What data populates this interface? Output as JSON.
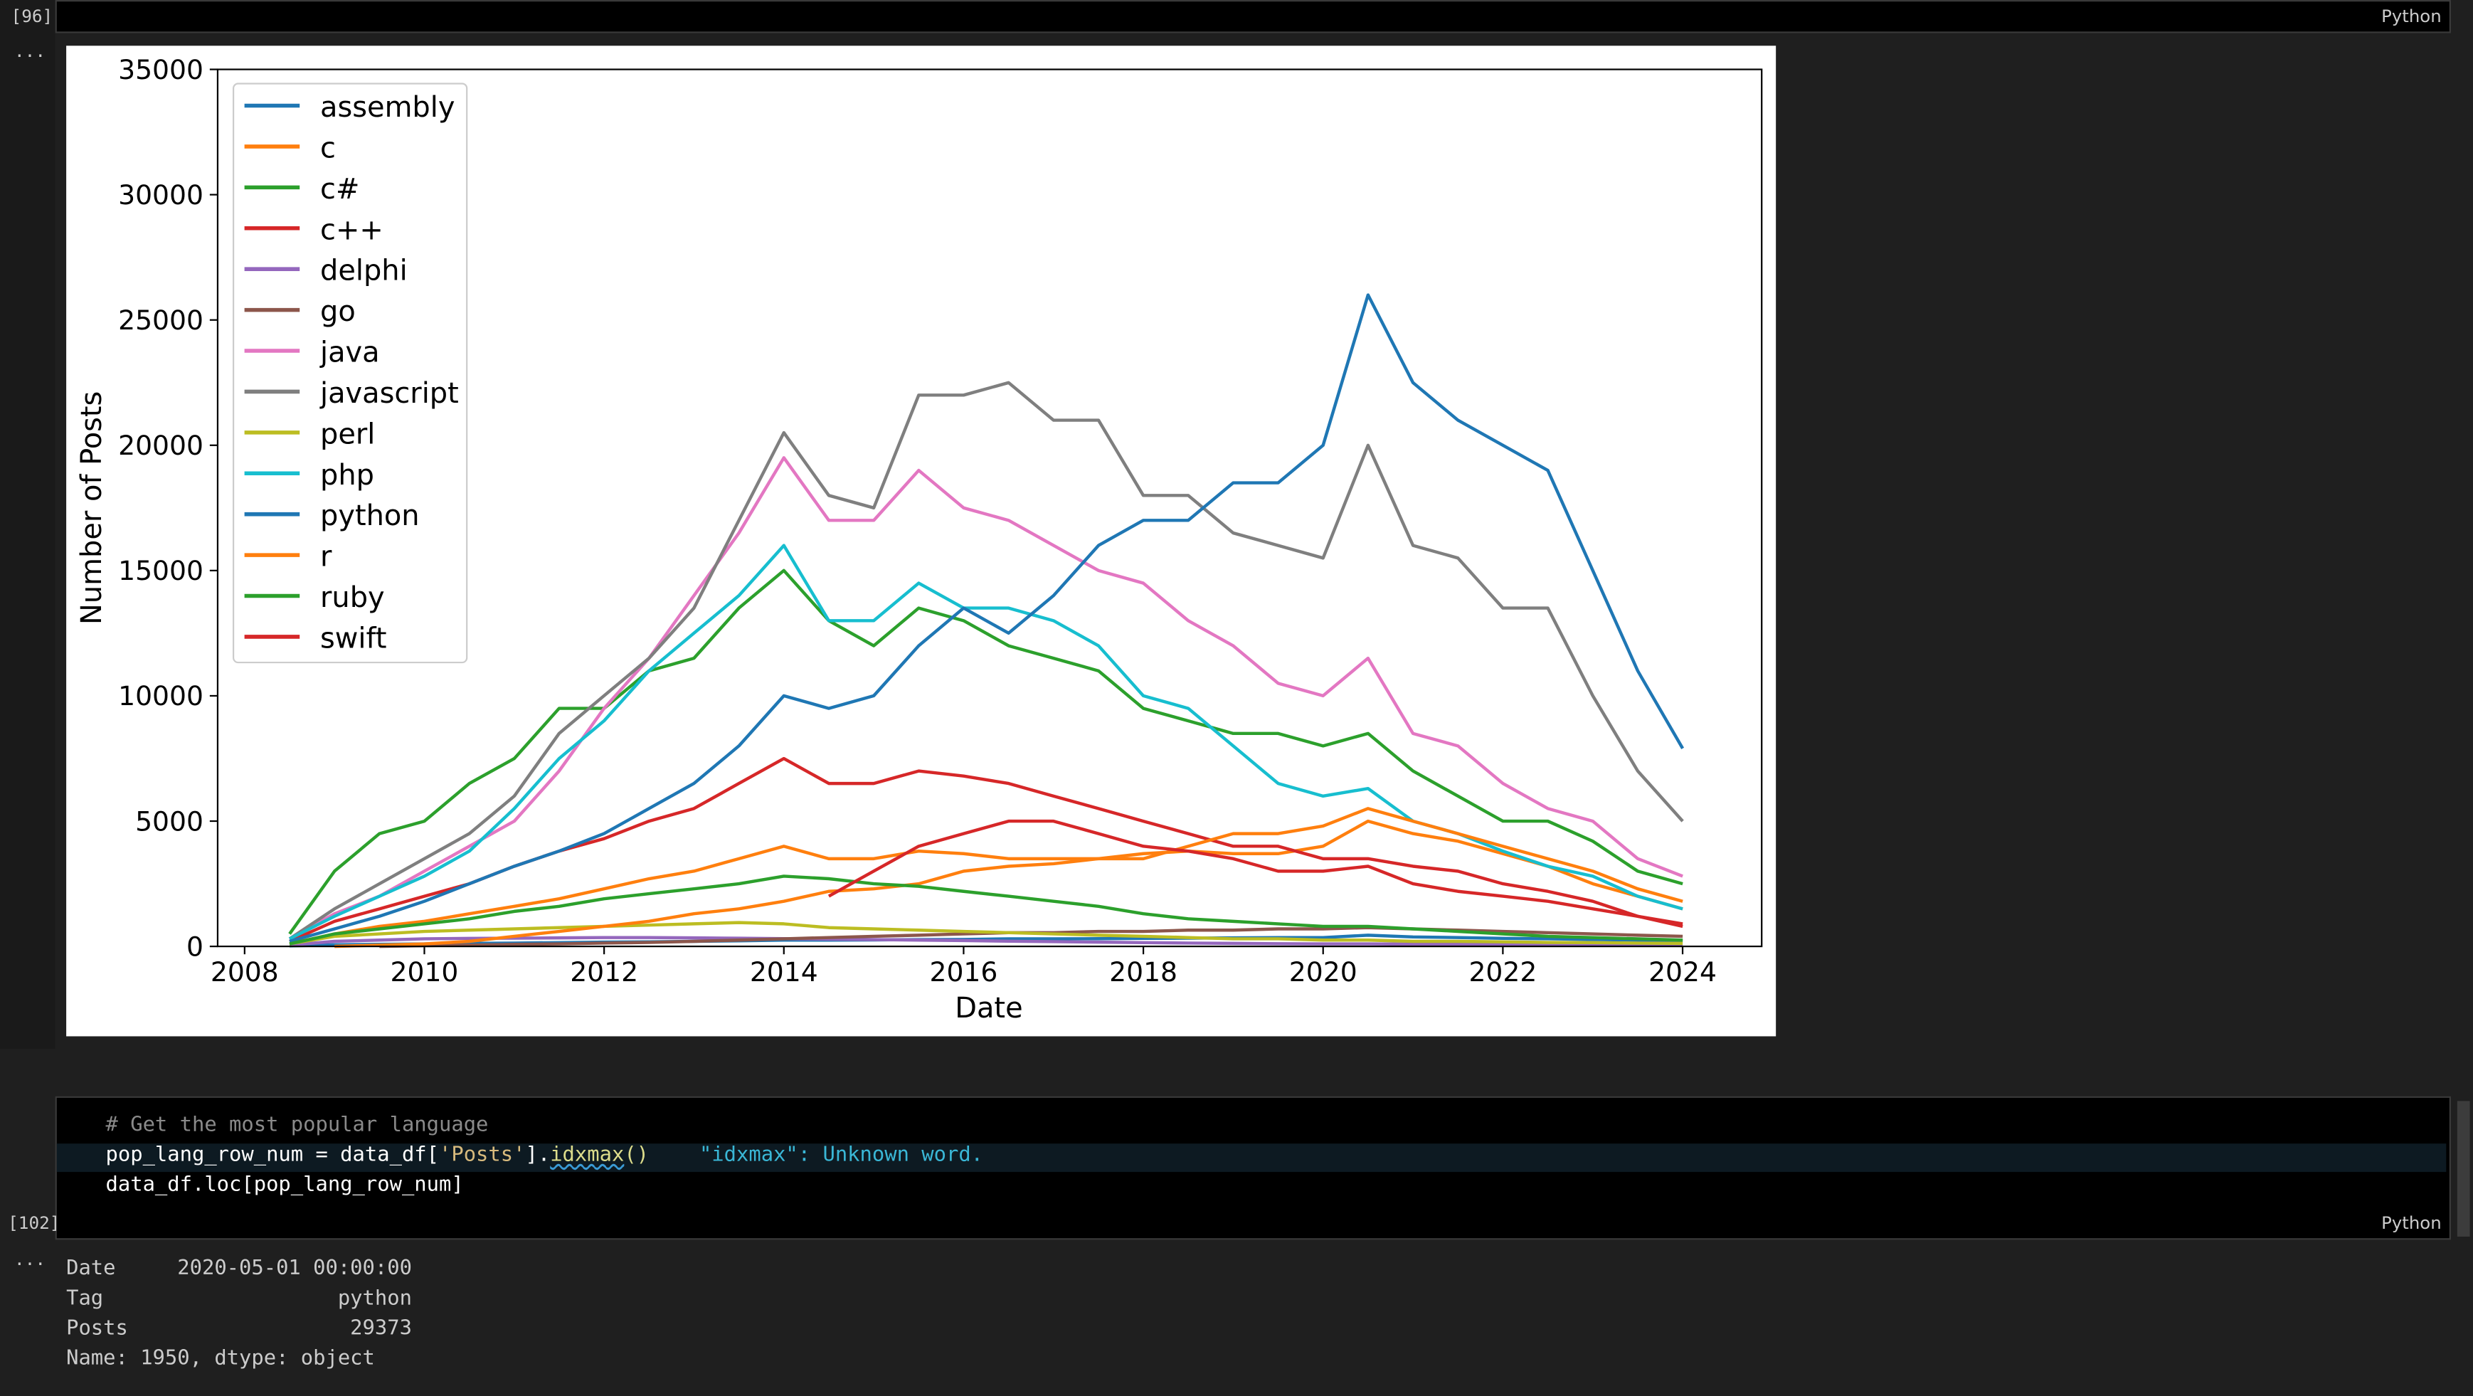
{
  "cells": [
    {
      "execution_count": "[96]",
      "language": "Python",
      "collapse": "..."
    },
    {
      "execution_count": "[102]",
      "language": "Python",
      "collapse": "...",
      "code": [
        [
          "# Get the most popular language"
        ],
        [
          "pop_lang_row_num = data_df[",
          "'Posts'",
          "].",
          "idxmax",
          "()"
        ],
        [
          "data_df.loc[pop_lang_row_num]"
        ]
      ],
      "diagnostic": "\"idxmax\": Unknown word.",
      "output": [
        "Date     2020-05-01 00:00:00",
        "Tag                   python",
        "Posts                  29373",
        "Name: 1950, dtype: object"
      ]
    }
  ],
  "chart_data": {
    "type": "line",
    "xlabel": "Date",
    "ylabel": "Number of Posts",
    "xlim": [
      2007.7,
      2024.88
    ],
    "xticks": [
      2008,
      2010,
      2012,
      2014,
      2016,
      2018,
      2020,
      2022,
      2024
    ],
    "ylim": [
      0,
      35000
    ],
    "yticks": [
      0,
      5000,
      10000,
      15000,
      20000,
      25000,
      30000,
      35000
    ],
    "legend": "upper left",
    "x": [
      2008.5,
      2009,
      2009.5,
      2010,
      2010.5,
      2011,
      2011.5,
      2012,
      2012.5,
      2013,
      2013.5,
      2014,
      2014.5,
      2015,
      2015.5,
      2016,
      2016.5,
      2017,
      2017.5,
      2018,
      2018.5,
      2019,
      2019.5,
      2020,
      2020.5,
      2021,
      2021.5,
      2022,
      2022.5,
      2023,
      2023.5,
      2024
    ],
    "series": [
      {
        "name": "assembly",
        "color": "#1f77b4",
        "values": [
          20,
          60,
          80,
          100,
          120,
          130,
          150,
          170,
          180,
          200,
          220,
          250,
          250,
          260,
          270,
          280,
          300,
          300,
          310,
          320,
          330,
          340,
          350,
          350,
          450,
          380,
          350,
          320,
          300,
          280,
          250,
          220
        ]
      },
      {
        "name": "c",
        "color": "#ff7f0e",
        "values": [
          100,
          500,
          800,
          1000,
          1300,
          1600,
          1900,
          2300,
          2700,
          3000,
          3500,
          4000,
          3500,
          3500,
          3800,
          3700,
          3500,
          3500,
          3500,
          3700,
          3800,
          3700,
          3700,
          4000,
          5000,
          4500,
          4200,
          3700,
          3200,
          2500,
          2000,
          1500
        ]
      },
      {
        "name": "c#",
        "color": "#2ca02c",
        "values": [
          500,
          3000,
          4500,
          5000,
          6500,
          7500,
          9500,
          9500,
          11000,
          11500,
          13500,
          15000,
          13000,
          12000,
          13500,
          13000,
          12000,
          11500,
          11000,
          9500,
          9000,
          8500,
          8500,
          8000,
          8500,
          7000,
          6000,
          5000,
          5000,
          4200,
          3000,
          2500
        ]
      },
      {
        "name": "c++",
        "color": "#d62728",
        "values": [
          200,
          1000,
          1500,
          2000,
          2500,
          3200,
          3800,
          4300,
          5000,
          5500,
          6500,
          7500,
          6500,
          6500,
          7000,
          6800,
          6500,
          6000,
          5500,
          5000,
          4500,
          4000,
          4000,
          3500,
          3500,
          3200,
          3000,
          2500,
          2200,
          1800,
          1200,
          800
        ]
      },
      {
        "name": "delphi",
        "color": "#9467bd",
        "values": [
          50,
          200,
          250,
          300,
          320,
          330,
          340,
          350,
          350,
          340,
          330,
          310,
          290,
          270,
          250,
          230,
          210,
          190,
          170,
          150,
          130,
          120,
          110,
          100,
          100,
          90,
          80,
          70,
          60,
          50,
          45,
          40
        ]
      },
      {
        "name": "go",
        "color": "#8c564b",
        "values": [
          null,
          null,
          0,
          30,
          50,
          80,
          100,
          130,
          160,
          200,
          250,
          300,
          350,
          400,
          450,
          500,
          550,
          550,
          600,
          600,
          650,
          650,
          700,
          700,
          750,
          700,
          650,
          600,
          550,
          500,
          450,
          400
        ]
      },
      {
        "name": "java",
        "color": "#e377c2",
        "values": [
          300,
          1300,
          2000,
          3000,
          4000,
          5000,
          7000,
          9500,
          11500,
          14000,
          16500,
          19500,
          17000,
          17000,
          19000,
          17500,
          17000,
          16000,
          15000,
          14500,
          13000,
          12000,
          10500,
          10000,
          11500,
          8500,
          8000,
          6500,
          5500,
          5000,
          3500,
          2800
        ]
      },
      {
        "name": "javascript",
        "color": "#7f7f7f",
        "values": [
          300,
          1500,
          2500,
          3500,
          4500,
          6000,
          8500,
          10000,
          11500,
          13500,
          17000,
          20500,
          18000,
          17500,
          22000,
          22000,
          22500,
          21000,
          21000,
          18000,
          18000,
          16500,
          16000,
          15500,
          20000,
          16000,
          15500,
          13500,
          13500,
          10000,
          7000,
          5000
        ]
      },
      {
        "name": "perl",
        "color": "#bcbd22",
        "values": [
          100,
          400,
          500,
          600,
          650,
          700,
          750,
          800,
          850,
          900,
          950,
          900,
          750,
          700,
          650,
          600,
          550,
          500,
          450,
          400,
          350,
          300,
          300,
          250,
          250,
          200,
          200,
          180,
          160,
          150,
          130,
          120
        ]
      },
      {
        "name": "php",
        "color": "#17becf",
        "values": [
          300,
          1200,
          2000,
          2800,
          3800,
          5500,
          7500,
          9000,
          11000,
          12500,
          14000,
          16000,
          13000,
          13000,
          14500,
          13500,
          13500,
          13000,
          12000,
          10000,
          9500,
          8000,
          6500,
          6000,
          6300,
          5000,
          4500,
          3800,
          3200,
          2800,
          2000,
          1500
        ]
      },
      {
        "name": "python",
        "color": "#1f77b4",
        "values": [
          200,
          700,
          1200,
          1800,
          2500,
          3200,
          3800,
          4500,
          5500,
          6500,
          8000,
          10000,
          9500,
          10000,
          12000,
          13500,
          12500,
          14000,
          16000,
          17000,
          17000,
          18500,
          18500,
          20000,
          26000,
          22500,
          21000,
          20000,
          19000,
          15000,
          11000,
          7900
        ]
      },
      {
        "name": "r",
        "color": "#ff7f0e",
        "values": [
          null,
          0,
          50,
          100,
          200,
          400,
          600,
          800,
          1000,
          1300,
          1500,
          1800,
          2200,
          2300,
          2500,
          3000,
          3200,
          3300,
          3500,
          3500,
          4000,
          4500,
          4500,
          4800,
          5500,
          5000,
          4500,
          4000,
          3500,
          3000,
          2300,
          1800
        ]
      },
      {
        "name": "ruby",
        "color": "#2ca02c",
        "values": [
          100,
          500,
          700,
          900,
          1100,
          1400,
          1600,
          1900,
          2100,
          2300,
          2500,
          2800,
          2700,
          2500,
          2400,
          2200,
          2000,
          1800,
          1600,
          1300,
          1100,
          1000,
          900,
          800,
          800,
          700,
          600,
          500,
          400,
          350,
          300,
          250
        ]
      },
      {
        "name": "swift",
        "color": "#d62728",
        "values": [
          null,
          null,
          null,
          null,
          null,
          null,
          null,
          null,
          null,
          null,
          null,
          null,
          2000,
          3000,
          4000,
          4500,
          5000,
          5000,
          4500,
          4000,
          3800,
          3500,
          3000,
          3000,
          3200,
          2500,
          2200,
          2000,
          1800,
          1500,
          1200,
          900
        ]
      }
    ]
  }
}
